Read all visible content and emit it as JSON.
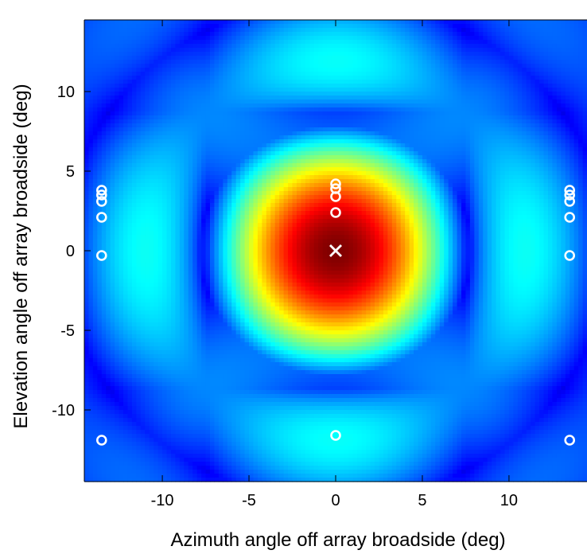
{
  "chart_data": {
    "type": "heatmap",
    "title": "",
    "xlabel": "Azimuth angle off array broadside (deg)",
    "ylabel": "Elevation angle off array broadside (deg)",
    "xlim": [
      -14.5,
      14.5
    ],
    "ylim": [
      -14.5,
      14.5
    ],
    "x_ticks": [
      -10,
      -5,
      0,
      5,
      10
    ],
    "x_tick_labels": [
      "-10",
      "-5",
      "0",
      "5",
      "10"
    ],
    "y_ticks": [
      -10,
      -5,
      0,
      5,
      10
    ],
    "y_tick_labels": [
      "-10",
      "-5",
      "0",
      "5",
      "10"
    ],
    "colormap": "jet",
    "grid": false,
    "beam_center": {
      "x": 0,
      "y": 0,
      "marker": "x"
    },
    "circle_markers": [
      {
        "x": 0,
        "y": 4.2
      },
      {
        "x": 0,
        "y": 3.9
      },
      {
        "x": 0,
        "y": 3.4
      },
      {
        "x": 0,
        "y": 2.4
      },
      {
        "x": 0,
        "y": -11.6
      },
      {
        "x": -13.5,
        "y": 3.8
      },
      {
        "x": -13.5,
        "y": 3.5
      },
      {
        "x": -13.5,
        "y": 3.1
      },
      {
        "x": -13.5,
        "y": 2.1
      },
      {
        "x": -13.5,
        "y": -0.3
      },
      {
        "x": -13.5,
        "y": -11.9
      },
      {
        "x": 13.5,
        "y": 3.8
      },
      {
        "x": 13.5,
        "y": 3.5
      },
      {
        "x": 13.5,
        "y": 3.1
      },
      {
        "x": 13.5,
        "y": 2.1
      },
      {
        "x": 13.5,
        "y": -0.3
      },
      {
        "x": 13.5,
        "y": -11.9
      }
    ],
    "marker_color": "#ffffff",
    "background_color": "#00009a"
  }
}
